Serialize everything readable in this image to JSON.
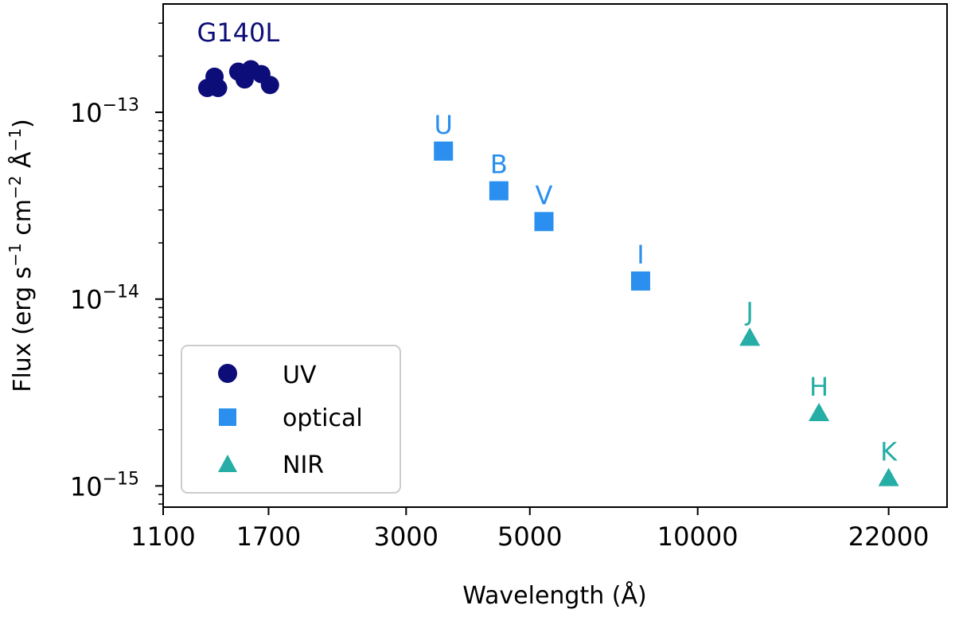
{
  "chart_data": {
    "type": "scatter",
    "xscale": "log",
    "yscale": "log",
    "xlim": [
      1100,
      28000
    ],
    "ylim": [
      7.7e-16,
      3.8e-13
    ],
    "xlabel": "Wavelength (Å)",
    "ylabel_parts": {
      "prefix": "Flux (erg s",
      "sup1": "−1",
      "mid1": " cm",
      "sup2": "−2",
      "mid2": " Å",
      "sup3": "−1",
      "suffix": ")"
    },
    "xticks": [
      {
        "value": 1100,
        "label": "1100"
      },
      {
        "value": 1700,
        "label": "1700"
      },
      {
        "value": 3000,
        "label": "3000"
      },
      {
        "value": 5000,
        "label": "5000"
      },
      {
        "value": 10000,
        "label": "10000"
      },
      {
        "value": 22000,
        "label": "22000"
      }
    ],
    "yticks": [
      {
        "value": 1e-15,
        "base": "10",
        "exp": "−15"
      },
      {
        "value": 1e-14,
        "base": "10",
        "exp": "−14"
      },
      {
        "value": 1e-13,
        "base": "10",
        "exp": "−13"
      }
    ],
    "series": [
      {
        "name": "UV",
        "marker": "circle",
        "color": "#0d0d7a",
        "x": [
          1320,
          1360,
          1380,
          1500,
          1540,
          1580,
          1650,
          1710
        ],
        "y": [
          1.35e-13,
          1.55e-13,
          1.35e-13,
          1.65e-13,
          1.5e-13,
          1.7e-13,
          1.6e-13,
          1.4e-13
        ],
        "annotation": {
          "text": "G140L",
          "x": 1500,
          "y": 2.4e-13
        }
      },
      {
        "name": "optical",
        "marker": "square",
        "color": "#2a8fee",
        "x": [
          3500,
          4400,
          5300,
          7900
        ],
        "y": [
          6.2e-14,
          3.8e-14,
          2.6e-14,
          1.25e-14
        ],
        "labels": [
          "U",
          "B",
          "V",
          "I"
        ]
      },
      {
        "name": "NIR",
        "marker": "triangle",
        "color": "#25ada6",
        "x": [
          12400,
          16500,
          22000
        ],
        "y": [
          6.2e-15,
          2.45e-15,
          1.1e-15
        ],
        "labels": [
          "J",
          "H",
          "K"
        ]
      }
    ],
    "legend": {
      "position": "lower-left",
      "entries": [
        "UV",
        "optical",
        "NIR"
      ]
    }
  }
}
